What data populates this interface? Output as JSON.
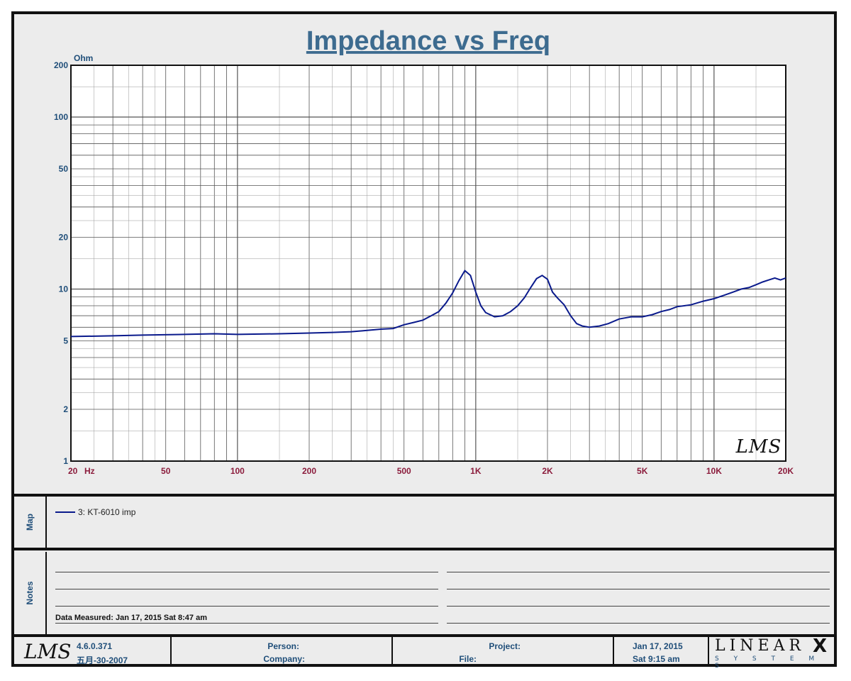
{
  "chart_data": {
    "type": "line",
    "title": "Impedance vs Freq",
    "ylabel": "Ohm",
    "xlabel": "Hz",
    "xscale": "log",
    "yscale": "log",
    "xlim": [
      20,
      20000
    ],
    "ylim": [
      1,
      200
    ],
    "grid": true,
    "x_ticks": [
      {
        "value": 20,
        "label": "20"
      },
      {
        "value": 50,
        "label": "50"
      },
      {
        "value": 100,
        "label": "100"
      },
      {
        "value": 200,
        "label": "200"
      },
      {
        "value": 500,
        "label": "500"
      },
      {
        "value": 1000,
        "label": "1K"
      },
      {
        "value": 2000,
        "label": "2K"
      },
      {
        "value": 5000,
        "label": "5K"
      },
      {
        "value": 10000,
        "label": "10K"
      },
      {
        "value": 20000,
        "label": "20K"
      }
    ],
    "y_ticks": [
      {
        "value": 1,
        "label": "1"
      },
      {
        "value": 2,
        "label": "2"
      },
      {
        "value": 5,
        "label": "5"
      },
      {
        "value": 10,
        "label": "10"
      },
      {
        "value": 20,
        "label": "20"
      },
      {
        "value": 50,
        "label": "50"
      },
      {
        "value": 100,
        "label": "100"
      },
      {
        "value": 200,
        "label": "200"
      }
    ],
    "series": [
      {
        "name": "3: KT-6010 imp",
        "color": "#0a1a8c",
        "x": [
          20,
          30,
          40,
          60,
          80,
          100,
          150,
          200,
          250,
          300,
          350,
          400,
          450,
          500,
          550,
          600,
          650,
          700,
          750,
          800,
          850,
          900,
          950,
          1000,
          1050,
          1100,
          1200,
          1300,
          1400,
          1500,
          1600,
          1700,
          1800,
          1900,
          2000,
          2100,
          2200,
          2350,
          2500,
          2650,
          2800,
          3000,
          3300,
          3600,
          4000,
          4500,
          5000,
          5500,
          6000,
          6500,
          7000,
          7500,
          8000,
          8500,
          9000,
          10000,
          11000,
          12000,
          13000,
          14000,
          15000,
          16000,
          17000,
          18000,
          19000,
          20000
        ],
        "values": [
          5.3,
          5.35,
          5.4,
          5.45,
          5.5,
          5.45,
          5.5,
          5.55,
          5.6,
          5.65,
          5.75,
          5.85,
          5.9,
          6.2,
          6.4,
          6.6,
          7.0,
          7.4,
          8.3,
          9.5,
          11.2,
          12.8,
          12.0,
          9.6,
          8.0,
          7.3,
          6.9,
          7.0,
          7.4,
          8.0,
          8.9,
          10.2,
          11.5,
          12.0,
          11.4,
          9.6,
          8.9,
          8.1,
          7.0,
          6.3,
          6.1,
          6.0,
          6.1,
          6.3,
          6.7,
          6.9,
          6.9,
          7.1,
          7.4,
          7.6,
          7.9,
          8.0,
          8.1,
          8.3,
          8.5,
          8.8,
          9.2,
          9.6,
          10.0,
          10.2,
          10.6,
          11.0,
          11.3,
          11.6,
          11.3,
          11.6
        ]
      }
    ],
    "watermark": "LMS"
  },
  "map": {
    "label": "Map",
    "entry": "3: KT-6010 imp",
    "entry_color": "#0a1a8c"
  },
  "notes": {
    "label": "Notes",
    "data_measured": "Data Measured: Jan 17, 2015  Sat  8:47 am"
  },
  "footer": {
    "lms_logo": "LMS",
    "version": "4.6.0.371",
    "version_date": "五月-30-2007",
    "person_label": "Person:",
    "company_label": "Company:",
    "project_label": "Project:",
    "file_label": "File:",
    "date": "Jan 17, 2015",
    "time": "Sat  9:15 am",
    "brand_top": "LINEAR",
    "brand_x": "X",
    "brand_bottom": "S Y S T E M S"
  },
  "colors": {
    "title": "#3d6b8f",
    "axis_text_y": "#1f4e79",
    "axis_text_x": "#8b1c3c",
    "curve": "#0a1a8c"
  }
}
